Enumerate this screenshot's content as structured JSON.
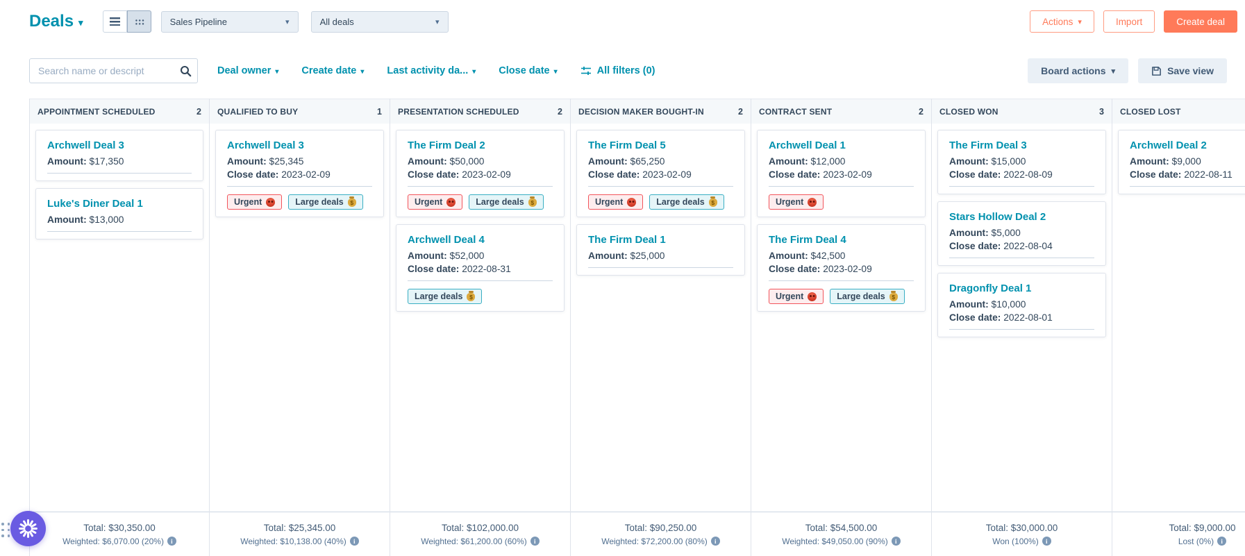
{
  "header": {
    "title": "Deals",
    "pipeline_value": "Sales Pipeline",
    "view_value": "All deals",
    "actions_label": "Actions",
    "import_label": "Import",
    "create_deal_label": "Create deal"
  },
  "filters": {
    "search_placeholder": "Search name or descript",
    "dropdowns": [
      "Deal owner",
      "Create date",
      "Last activity da...",
      "Close date"
    ],
    "all_filters_label": "All filters (0)",
    "board_actions_label": "Board actions",
    "save_view_label": "Save view"
  },
  "colors": {
    "accent_orange": "#ff7a59",
    "link_teal": "#0091ae",
    "text_navy": "#33475b",
    "urgent_border": "#f2545b",
    "urgent_bg": "#fdedee",
    "large_border": "#39aec3",
    "large_bg": "#e5f5f8",
    "fab_purple": "#6a5be2"
  },
  "icons": {
    "list_view": "list-icon",
    "board_view": "grid-icon",
    "search": "search-icon",
    "all_filters": "sliders-icon",
    "save_view": "save-icon",
    "weighted_info": "info-icon",
    "fab": "sparkle-burst-icon",
    "urgent_tag": "angry-face-icon",
    "large_tag": "money-bag-icon"
  },
  "board": {
    "labels": {
      "amount": "Amount:",
      "close": "Close date:"
    },
    "tag_defs": {
      "urgent": {
        "label": "Urgent",
        "type": "urgent",
        "icon": "angry-face-icon"
      },
      "large": {
        "label": "Large deals",
        "type": "large",
        "icon": "money-bag-icon"
      }
    },
    "columns": [
      {
        "name": "APPOINTMENT SCHEDULED",
        "count": "2",
        "total": "Total: $30,350.00",
        "weighted": "Weighted: $6,070.00 (20%)",
        "cards": [
          {
            "title": "Archwell Deal 3",
            "amount": "$17,350",
            "close_date": null,
            "tags": []
          },
          {
            "title": "Luke's Diner Deal 1",
            "amount": "$13,000",
            "close_date": null,
            "tags": []
          }
        ]
      },
      {
        "name": "QUALIFIED TO BUY",
        "count": "1",
        "total": "Total: $25,345.00",
        "weighted": "Weighted: $10,138.00 (40%)",
        "cards": [
          {
            "title": "Archwell Deal 3",
            "amount": "$25,345",
            "close_date": "2023-02-09",
            "tags": [
              "urgent",
              "large"
            ]
          }
        ]
      },
      {
        "name": "PRESENTATION SCHEDULED",
        "count": "2",
        "total": "Total: $102,000.00",
        "weighted": "Weighted: $61,200.00 (60%)",
        "cards": [
          {
            "title": "The Firm Deal 2",
            "amount": "$50,000",
            "close_date": "2023-02-09",
            "tags": [
              "urgent",
              "large"
            ]
          },
          {
            "title": "Archwell Deal 4",
            "amount": "$52,000",
            "close_date": "2022-08-31",
            "tags": [
              "large"
            ]
          }
        ]
      },
      {
        "name": "DECISION MAKER BOUGHT-IN",
        "count": "2",
        "total": "Total: $90,250.00",
        "weighted": "Weighted: $72,200.00 (80%)",
        "cards": [
          {
            "title": "The Firm Deal 5",
            "amount": "$65,250",
            "close_date": "2023-02-09",
            "tags": [
              "urgent",
              "large"
            ]
          },
          {
            "title": "The Firm Deal 1",
            "amount": "$25,000",
            "close_date": null,
            "tags": []
          }
        ]
      },
      {
        "name": "CONTRACT SENT",
        "count": "2",
        "total": "Total: $54,500.00",
        "weighted": "Weighted: $49,050.00 (90%)",
        "cards": [
          {
            "title": "Archwell Deal 1",
            "amount": "$12,000",
            "close_date": "2023-02-09",
            "tags": [
              "urgent"
            ]
          },
          {
            "title": "The Firm Deal 4",
            "amount": "$42,500",
            "close_date": "2023-02-09",
            "tags": [
              "urgent",
              "large"
            ]
          }
        ]
      },
      {
        "name": "CLOSED WON",
        "count": "3",
        "total": "Total: $30,000.00",
        "weighted": "Won (100%)",
        "cards": [
          {
            "title": "The Firm Deal 3",
            "amount": "$15,000",
            "close_date": "2022-08-09",
            "tags": []
          },
          {
            "title": "Stars Hollow Deal 2",
            "amount": "$5,000",
            "close_date": "2022-08-04",
            "tags": []
          },
          {
            "title": "Dragonfly Deal 1",
            "amount": "$10,000",
            "close_date": "2022-08-01",
            "tags": []
          }
        ]
      },
      {
        "name": "CLOSED LOST",
        "count": "",
        "total": "Total: $9,000.00",
        "weighted": "Lost (0%)",
        "cards": [
          {
            "title": "Archwell Deal 2",
            "amount": "$9,000",
            "close_date": "2022-08-11",
            "tags": []
          }
        ]
      }
    ]
  }
}
